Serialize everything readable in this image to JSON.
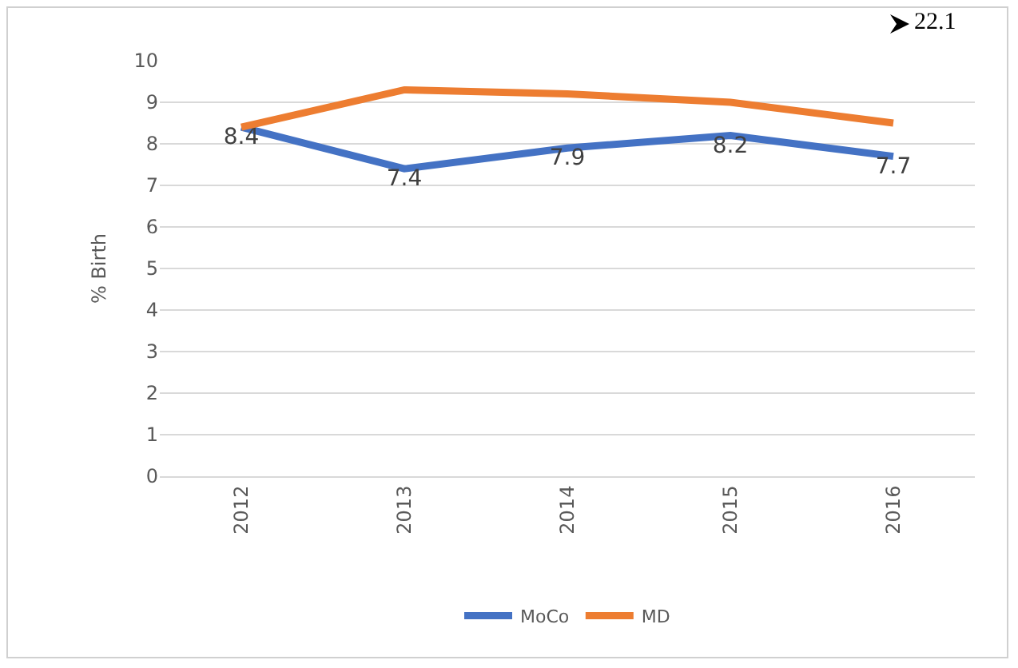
{
  "chart_data": {
    "type": "line",
    "ylabel": "% Birth",
    "categories": [
      "2012",
      "2013",
      "2014",
      "2015",
      "2016"
    ],
    "series": [
      {
        "name": "MoCo",
        "color": "#4472c4",
        "values": [
          8.4,
          7.4,
          7.9,
          8.2,
          7.7
        ],
        "value_labels": [
          "8.4",
          "7.4",
          "7.9",
          "8.2",
          "7.7"
        ]
      },
      {
        "name": "MD",
        "color": "#ed7d31",
        "values": [
          8.4,
          9.3,
          9.2,
          9.0,
          8.5
        ]
      }
    ],
    "ylim": [
      0,
      10
    ],
    "yticks": [
      0,
      1,
      2,
      3,
      4,
      5,
      6,
      7,
      8,
      9,
      10
    ],
    "grid": "y",
    "legend": "bottom",
    "marker": "none",
    "line_style": "solid",
    "annotations": [
      "22.1"
    ]
  }
}
